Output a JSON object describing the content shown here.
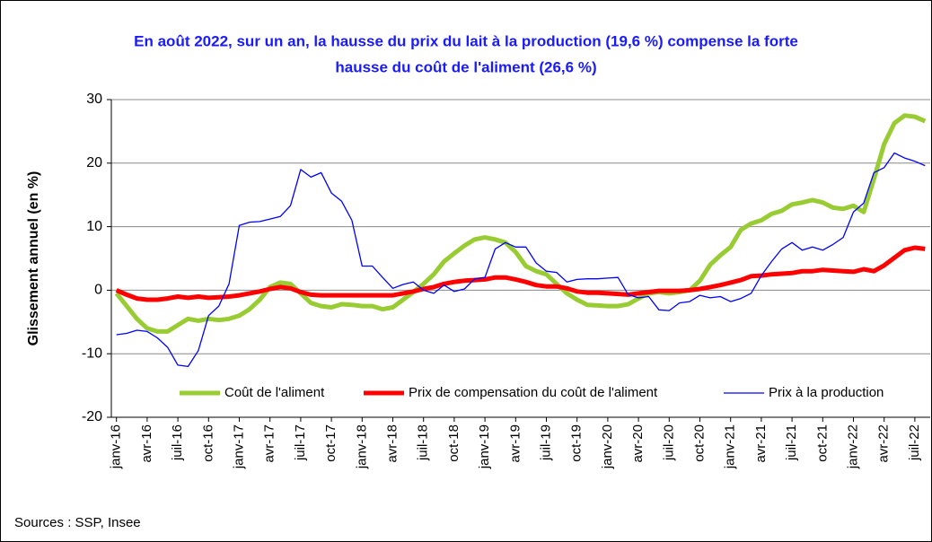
{
  "chart_data": {
    "type": "line",
    "title": [
      "En août 2022, sur un an, la hausse  du prix du lait à la production (19,6 %) compense la forte",
      "hausse du coût de l'aliment (26,6 %)"
    ],
    "y_label": "Glissement annuel (en %)",
    "source": "Sources : SSP, Insee",
    "categories": [
      "janv-16",
      null,
      null,
      "avr-16",
      null,
      null,
      "juil-16",
      null,
      null,
      "oct-16",
      null,
      null,
      "janv-17",
      null,
      null,
      "avr-17",
      null,
      null,
      "juil-17",
      null,
      null,
      "oct-17",
      null,
      null,
      "janv-18",
      null,
      null,
      "avr-18",
      null,
      null,
      "juil-18",
      null,
      null,
      "oct-18",
      null,
      null,
      "janv-19",
      null,
      null,
      "avr-19",
      null,
      null,
      "juil-19",
      null,
      null,
      "oct-19",
      null,
      null,
      "janv-20",
      null,
      null,
      "avr-20",
      null,
      null,
      "juil-20",
      null,
      null,
      "oct-20",
      null,
      null,
      "janv-21",
      null,
      null,
      "avr-21",
      null,
      null,
      "juil-21",
      null,
      null,
      "oct-21",
      null,
      null,
      "janv-22",
      null,
      null,
      "avr-22",
      null,
      null,
      "juil-22",
      null
    ],
    "series": [
      {
        "name": "Coût de l'aliment",
        "color": "#99cc33",
        "width": 5,
        "values": [
          -0.5,
          -2.5,
          -4.5,
          -6,
          -6.5,
          -6.5,
          -5.5,
          -4.5,
          -4.8,
          -4.5,
          -4.7,
          -4.5,
          -4,
          -3,
          -1.5,
          0.5,
          1.2,
          1,
          -0.5,
          -2,
          -2.5,
          -2.7,
          -2.2,
          -2.3,
          -2.5,
          -2.5,
          -3,
          -2.7,
          -1.5,
          -0.3,
          1,
          2.5,
          4.5,
          5.8,
          7,
          8,
          8.3,
          8,
          7.5,
          6,
          3.8,
          3,
          2.5,
          1,
          -0.5,
          -1.5,
          -2.3,
          -2.4,
          -2.5,
          -2.5,
          -2.2,
          -1.3,
          -0.5,
          -0.3,
          -0.5,
          -0.3,
          0,
          1.5,
          4,
          5.5,
          6.8,
          9.5,
          10.5,
          11,
          12,
          12.5,
          13.5,
          13.8,
          14.2,
          13.8,
          13,
          12.8,
          13.3,
          12.3,
          17.5,
          23,
          26.3,
          27.5,
          27.3,
          26.6
        ]
      },
      {
        "name": "Prix de compensation du coût de l'aliment",
        "color": "#ff0000",
        "width": 5,
        "values": [
          0,
          -0.7,
          -1.3,
          -1.5,
          -1.5,
          -1.3,
          -1,
          -1.2,
          -1,
          -1.2,
          -1.1,
          -1,
          -0.8,
          -0.5,
          -0.2,
          0.2,
          0.5,
          0.3,
          -0.3,
          -0.7,
          -0.8,
          -0.8,
          -0.8,
          -0.8,
          -0.8,
          -0.8,
          -0.8,
          -0.8,
          -0.5,
          -0.2,
          0.2,
          0.5,
          1,
          1.3,
          1.5,
          1.6,
          1.7,
          2,
          2,
          1.7,
          1.3,
          0.8,
          0.6,
          0.6,
          0.3,
          -0.2,
          -0.4,
          -0.4,
          -0.5,
          -0.6,
          -0.7,
          -0.5,
          -0.3,
          -0.1,
          -0.1,
          -0.1,
          0,
          0.2,
          0.5,
          0.8,
          1.2,
          1.6,
          2.2,
          2.3,
          2.5,
          2.6,
          2.7,
          3,
          3,
          3.2,
          3.1,
          3,
          2.9,
          3.3,
          3,
          3.9,
          5.1,
          6.3,
          6.7,
          6.5
        ]
      },
      {
        "name": "Prix à la production",
        "color": "#0000ff",
        "width": 1.3,
        "values": [
          -7,
          -6.8,
          -6.3,
          -6.5,
          -7.5,
          -9,
          -11.8,
          -12,
          -9.5,
          -4,
          -2.5,
          1,
          10.2,
          10.7,
          10.8,
          11.2,
          11.6,
          13.3,
          19,
          17.8,
          18.5,
          15.3,
          14,
          11,
          3.8,
          3.8,
          2,
          0.3,
          0.9,
          1.3,
          0,
          -0.5,
          0.8,
          -0.2,
          0.2,
          1.8,
          2,
          6.5,
          7.5,
          6.8,
          6.8,
          4.3,
          3,
          2.8,
          1.3,
          1.7,
          1.8,
          1.8,
          1.9,
          2,
          -0.7,
          -1.2,
          -1,
          -3.1,
          -3.2,
          -2,
          -1.8,
          -0.8,
          -1.2,
          -1,
          -1.8,
          -1.3,
          -0.5,
          2.3,
          4.5,
          6.5,
          7.5,
          6.3,
          6.8,
          6.3,
          7.2,
          8.3,
          12.3,
          13.7,
          18.5,
          19.3,
          21.6,
          20.8,
          20.3,
          19.6
        ]
      }
    ],
    "ylim": [
      -20,
      30
    ],
    "yticks": [
      -20,
      -10,
      0,
      10,
      20,
      30
    ],
    "grid": true
  }
}
